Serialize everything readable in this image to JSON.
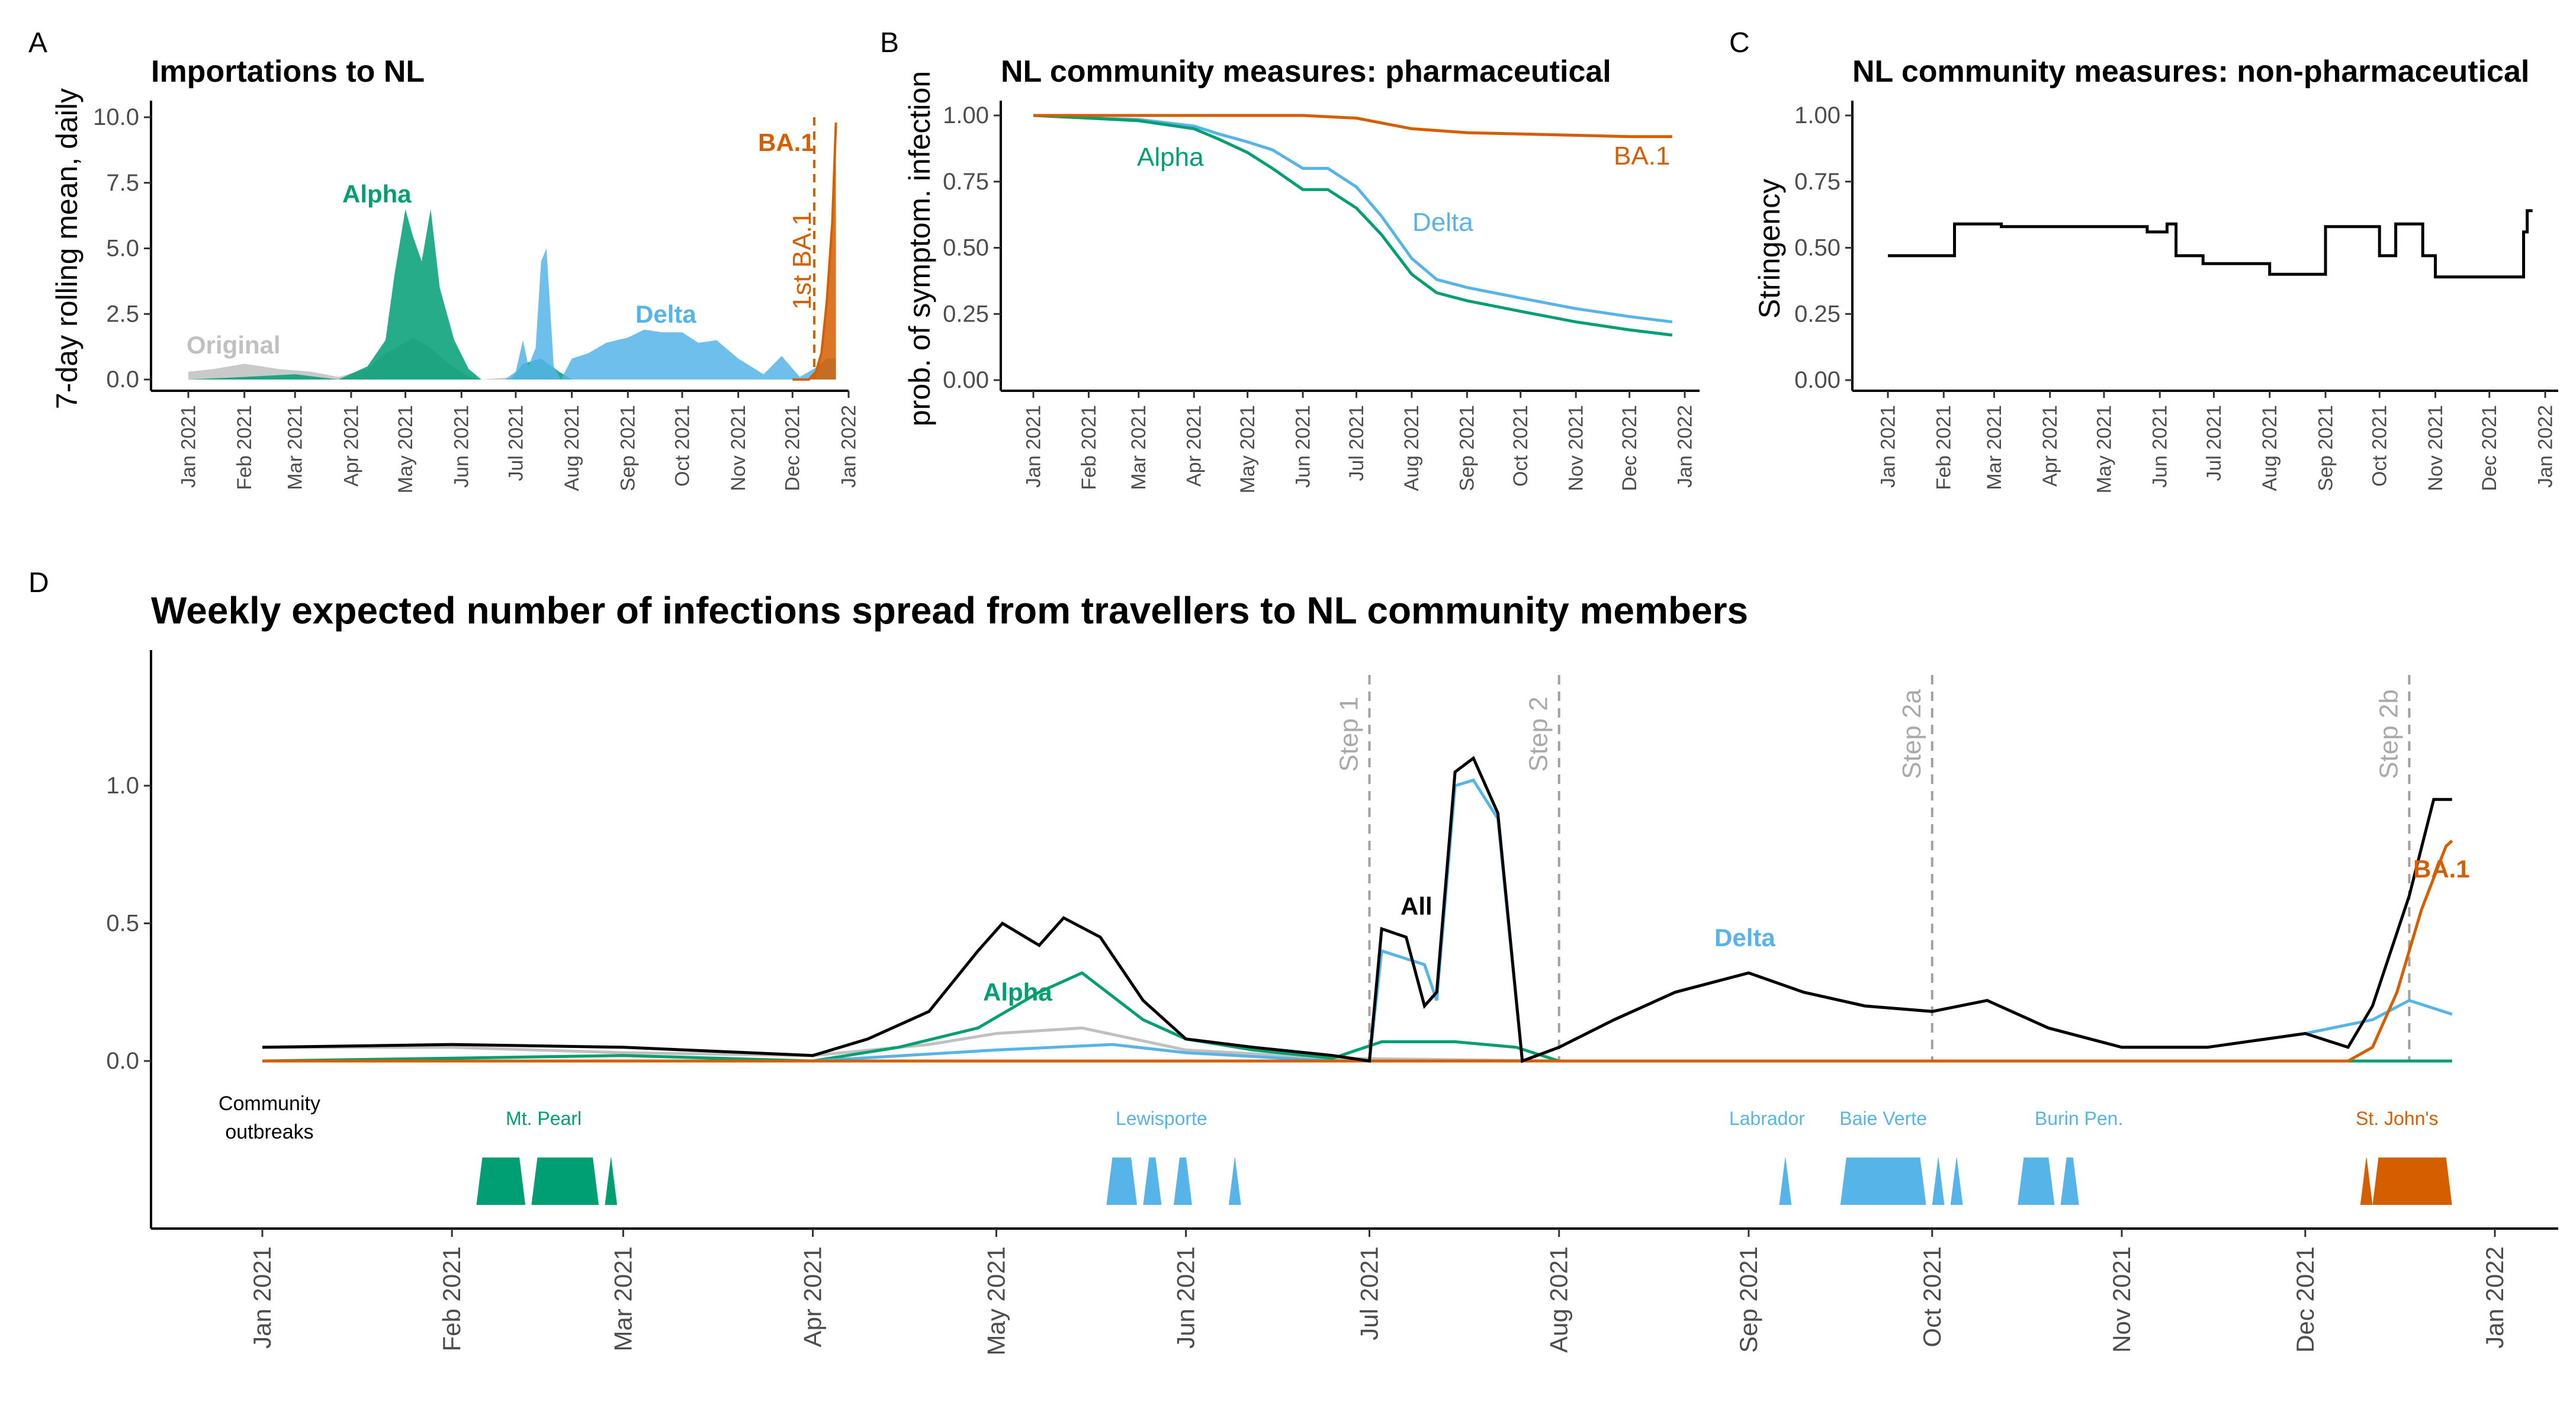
{
  "colors": {
    "Original": "#c0c0c0",
    "Alpha": "#009e73",
    "Delta": "#56b4e9",
    "BA.1": "#d55e00",
    "All": "#000000",
    "step": "#a0a0a0"
  },
  "month_labels": [
    "Jan 2021",
    "Feb 2021",
    "Mar 2021",
    "Apr 2021",
    "May 2021",
    "Jun 2021",
    "Jul 2021",
    "Aug 2021",
    "Sep 2021",
    "Oct 2021",
    "Nov 2021",
    "Dec 2021",
    "Jan 2022"
  ],
  "chart_data": [
    {
      "panel": "A",
      "type": "area",
      "title": "Importations to NL",
      "xlabel": "",
      "ylabel": "7-day rolling mean, daily",
      "ylim": [
        0,
        10
      ],
      "yticks": [
        "0.0",
        "2.5",
        "5.0",
        "7.5",
        "10.0"
      ],
      "annotations": {
        "Original": "Original",
        "Alpha": "Alpha",
        "Delta": "Delta",
        "BA.1": "BA.1",
        "first_ba1": "1st BA.1"
      },
      "first_ba1_date": "2021-12-13",
      "series": [
        {
          "name": "Original",
          "x": [
            "2021-01-01",
            "2021-01-15",
            "2021-02-01",
            "2021-02-20",
            "2021-03-10",
            "2021-03-25",
            "2021-04-10",
            "2021-04-20",
            "2021-04-28",
            "2021-05-05",
            "2021-05-15",
            "2021-05-25",
            "2021-06-05",
            "2021-06-12",
            "2021-07-01",
            "2021-07-10",
            "2021-07-20",
            "2021-08-01",
            "2021-12-25"
          ],
          "values": [
            0.3,
            0.4,
            0.6,
            0.4,
            0.3,
            0.1,
            0.4,
            1.0,
            1.3,
            1.6,
            1.2,
            0.6,
            0.1,
            0,
            0.1,
            0.2,
            0.1,
            0,
            0
          ]
        },
        {
          "name": "Alpha",
          "x": [
            "2021-01-01",
            "2021-02-01",
            "2021-03-01",
            "2021-03-25",
            "2021-04-10",
            "2021-04-20",
            "2021-04-25",
            "2021-05-01",
            "2021-05-05",
            "2021-05-10",
            "2021-05-15",
            "2021-05-20",
            "2021-05-28",
            "2021-06-05",
            "2021-06-12",
            "2021-06-28",
            "2021-07-05",
            "2021-07-15",
            "2021-07-25",
            "2021-08-01",
            "2021-12-25"
          ],
          "values": [
            0,
            0.1,
            0.2,
            0,
            0.5,
            1.5,
            4.0,
            6.5,
            5.5,
            4.5,
            6.5,
            3.5,
            1.5,
            0.4,
            0,
            0,
            0.6,
            0.8,
            0.3,
            0,
            0
          ]
        },
        {
          "name": "Delta",
          "x": [
            "2021-01-01",
            "2021-06-01",
            "2021-06-25",
            "2021-07-01",
            "2021-07-05",
            "2021-07-08",
            "2021-07-12",
            "2021-07-15",
            "2021-07-18",
            "2021-07-22",
            "2021-07-26",
            "2021-08-01",
            "2021-08-10",
            "2021-08-20",
            "2021-09-01",
            "2021-09-10",
            "2021-09-20",
            "2021-10-01",
            "2021-10-10",
            "2021-10-20",
            "2021-11-01",
            "2021-11-15",
            "2021-11-25",
            "2021-12-05",
            "2021-12-15",
            "2021-12-20",
            "2021-12-25"
          ],
          "values": [
            0,
            0,
            0,
            0.3,
            1.5,
            0.5,
            1.2,
            4.5,
            5.0,
            0.5,
            0,
            0.8,
            1.0,
            1.4,
            1.6,
            1.9,
            1.8,
            1.8,
            1.4,
            1.5,
            0.8,
            0.2,
            0.9,
            0.1,
            0.5,
            0.8,
            0.8
          ]
        },
        {
          "name": "BA.1",
          "x": [
            "2021-12-01",
            "2021-12-10",
            "2021-12-14",
            "2021-12-17",
            "2021-12-20",
            "2021-12-23",
            "2021-12-25"
          ],
          "values": [
            0,
            0,
            0.3,
            1.0,
            3.0,
            6.0,
            9.8
          ]
        }
      ]
    },
    {
      "panel": "B",
      "type": "line",
      "title": "NL community measures: pharmaceutical",
      "xlabel": "",
      "ylabel": "prob. of symptom. infection",
      "ylim": [
        0,
        1
      ],
      "yticks": [
        "0.00",
        "0.25",
        "0.50",
        "0.75",
        "1.00"
      ],
      "series": [
        {
          "name": "Alpha",
          "x": [
            "2021-01-01",
            "2021-02-01",
            "2021-03-01",
            "2021-04-01",
            "2021-04-15",
            "2021-05-01",
            "2021-05-15",
            "2021-06-01",
            "2021-06-15",
            "2021-07-01",
            "2021-07-15",
            "2021-08-01",
            "2021-08-15",
            "2021-09-01",
            "2021-10-01",
            "2021-11-01",
            "2021-12-01",
            "2021-12-25"
          ],
          "values": [
            1.0,
            0.99,
            0.98,
            0.95,
            0.91,
            0.86,
            0.8,
            0.72,
            0.72,
            0.65,
            0.55,
            0.4,
            0.33,
            0.3,
            0.26,
            0.22,
            0.19,
            0.17
          ]
        },
        {
          "name": "Delta",
          "x": [
            "2021-01-01",
            "2021-02-01",
            "2021-03-01",
            "2021-04-01",
            "2021-04-15",
            "2021-05-01",
            "2021-05-15",
            "2021-06-01",
            "2021-06-15",
            "2021-07-01",
            "2021-07-15",
            "2021-08-01",
            "2021-08-15",
            "2021-09-01",
            "2021-10-01",
            "2021-11-01",
            "2021-12-01",
            "2021-12-25"
          ],
          "values": [
            1.0,
            0.99,
            0.985,
            0.96,
            0.93,
            0.9,
            0.87,
            0.8,
            0.8,
            0.73,
            0.62,
            0.46,
            0.38,
            0.35,
            0.31,
            0.27,
            0.24,
            0.22
          ]
        },
        {
          "name": "BA.1",
          "x": [
            "2021-01-01",
            "2021-06-01",
            "2021-07-01",
            "2021-08-01",
            "2021-09-01",
            "2021-10-01",
            "2021-11-01",
            "2021-12-01",
            "2021-12-25"
          ],
          "values": [
            1.0,
            1.0,
            0.99,
            0.95,
            0.935,
            0.93,
            0.925,
            0.92,
            0.92
          ]
        }
      ]
    },
    {
      "panel": "C",
      "type": "line",
      "title": "NL community measures: non-pharmaceutical",
      "xlabel": "",
      "ylabel": "Stringency",
      "ylim": [
        0,
        1
      ],
      "yticks": [
        "0.00",
        "0.25",
        "0.50",
        "0.75",
        "1.00"
      ],
      "series": [
        {
          "name": "",
          "step": true,
          "x": [
            "2021-01-01",
            "2021-02-07",
            "2021-03-05",
            "2021-05-25",
            "2021-06-05",
            "2021-06-10",
            "2021-06-25",
            "2021-08-01",
            "2021-09-01",
            "2021-10-01",
            "2021-10-10",
            "2021-10-25",
            "2021-11-01",
            "2021-12-01",
            "2021-12-20",
            "2021-12-22",
            "2021-12-25"
          ],
          "values": [
            0.47,
            0.59,
            0.58,
            0.56,
            0.59,
            0.47,
            0.44,
            0.4,
            0.58,
            0.47,
            0.59,
            0.47,
            0.39,
            0.39,
            0.56,
            0.64,
            0.64
          ]
        }
      ]
    },
    {
      "panel": "D",
      "type": "line",
      "title": "Weekly expected number of infections spread from travellers to NL community members",
      "xlabel": "",
      "ylabel": "",
      "ylim": [
        -0.6,
        1.4
      ],
      "yticks": [
        "0.0",
        "0.5",
        "1.0"
      ],
      "labels": {
        "All": "All",
        "Alpha": "Alpha",
        "Delta": "Delta",
        "BA.1": "BA.1"
      },
      "steps": [
        {
          "label": "Step 1",
          "date": "2021-07-01"
        },
        {
          "label": "Step 2",
          "date": "2021-08-01"
        },
        {
          "label": "Step 2a",
          "date": "2021-10-01"
        },
        {
          "label": "Step 2b",
          "date": "2021-12-18"
        }
      ],
      "community_outbreaks_label": "Community\noutbreaks",
      "outbreaks": [
        {
          "name": "Mt. Pearl",
          "variant": "Alpha",
          "label_date": "2021-02-16",
          "ranges": [
            [
              "2021-02-05",
              "2021-02-13"
            ],
            [
              "2021-02-14",
              "2021-02-25"
            ],
            [
              "2021-02-26",
              "2021-02-28"
            ]
          ]
        },
        {
          "name": "Lewisporte",
          "variant": "Delta",
          "label_date": "2021-05-28",
          "ranges": [
            [
              "2021-05-19",
              "2021-05-24"
            ],
            [
              "2021-05-25",
              "2021-05-28"
            ],
            [
              "2021-05-30",
              "2021-06-02"
            ],
            [
              "2021-06-08",
              "2021-06-10"
            ]
          ]
        },
        {
          "name": "Labrador",
          "variant": "Delta",
          "label_date": "2021-09-04",
          "ranges": [
            [
              "2021-09-06",
              "2021-09-08"
            ]
          ]
        },
        {
          "name": "Baie Verte",
          "variant": "Delta",
          "label_date": "2021-09-23",
          "ranges": [
            [
              "2021-09-16",
              "2021-09-30"
            ],
            [
              "2021-10-01",
              "2021-10-03"
            ],
            [
              "2021-10-04",
              "2021-10-06"
            ]
          ]
        },
        {
          "name": "Burin Pen.",
          "variant": "Delta",
          "label_date": "2021-10-25",
          "ranges": [
            [
              "2021-10-15",
              "2021-10-21"
            ],
            [
              "2021-10-22",
              "2021-10-25"
            ]
          ]
        },
        {
          "name": "St. John's",
          "variant": "BA.1",
          "label_date": "2021-12-16",
          "ranges": [
            [
              "2021-12-10",
              "2021-12-12"
            ],
            [
              "2021-12-12",
              "2021-12-25"
            ]
          ]
        }
      ],
      "series": [
        {
          "name": "All",
          "x": [
            "2021-01-01",
            "2021-02-01",
            "2021-03-01",
            "2021-04-01",
            "2021-04-10",
            "2021-04-20",
            "2021-04-28",
            "2021-05-02",
            "2021-05-08",
            "2021-05-12",
            "2021-05-18",
            "2021-05-25",
            "2021-06-01",
            "2021-06-12",
            "2021-06-25",
            "2021-07-01",
            "2021-07-03",
            "2021-07-07",
            "2021-07-10",
            "2021-07-12",
            "2021-07-15",
            "2021-07-18",
            "2021-07-22",
            "2021-07-26",
            "2021-08-01",
            "2021-08-10",
            "2021-08-20",
            "2021-09-01",
            "2021-09-10",
            "2021-09-20",
            "2021-10-01",
            "2021-10-10",
            "2021-10-20",
            "2021-11-01",
            "2021-11-15",
            "2021-12-01",
            "2021-12-08",
            "2021-12-12",
            "2021-12-18",
            "2021-12-22",
            "2021-12-25"
          ],
          "values": [
            0.05,
            0.06,
            0.05,
            0.02,
            0.08,
            0.18,
            0.4,
            0.5,
            0.42,
            0.52,
            0.45,
            0.22,
            0.08,
            0.05,
            0.02,
            0.0,
            0.48,
            0.45,
            0.2,
            0.25,
            1.05,
            1.1,
            0.9,
            0.0,
            0.05,
            0.15,
            0.25,
            0.32,
            0.25,
            0.2,
            0.18,
            0.22,
            0.12,
            0.05,
            0.05,
            0.1,
            0.05,
            0.2,
            0.6,
            0.95,
            0.95
          ]
        },
        {
          "name": "Alpha",
          "x": [
            "2021-01-01",
            "2021-02-01",
            "2021-03-01",
            "2021-04-01",
            "2021-04-15",
            "2021-04-28",
            "2021-05-08",
            "2021-05-15",
            "2021-05-25",
            "2021-06-01",
            "2021-06-12",
            "2021-06-25",
            "2021-07-03",
            "2021-07-15",
            "2021-07-25",
            "2021-08-01",
            "2021-12-25"
          ],
          "values": [
            0.0,
            0.01,
            0.02,
            0.0,
            0.05,
            0.12,
            0.25,
            0.32,
            0.15,
            0.08,
            0.04,
            0.01,
            0.07,
            0.07,
            0.05,
            0.0,
            0.0
          ]
        },
        {
          "name": "Delta",
          "x": [
            "2021-01-01",
            "2021-04-01",
            "2021-05-01",
            "2021-05-20",
            "2021-06-01",
            "2021-06-25",
            "2021-07-01",
            "2021-07-03",
            "2021-07-10",
            "2021-07-12",
            "2021-07-15",
            "2021-07-18",
            "2021-07-22",
            "2021-07-26",
            "2021-08-01",
            "2021-08-10",
            "2021-08-20",
            "2021-09-01",
            "2021-09-10",
            "2021-09-20",
            "2021-10-01",
            "2021-10-10",
            "2021-10-20",
            "2021-11-01",
            "2021-11-15",
            "2021-12-01",
            "2021-12-12",
            "2021-12-18",
            "2021-12-25"
          ],
          "values": [
            0.0,
            0.0,
            0.04,
            0.06,
            0.03,
            0.0,
            0.0,
            0.4,
            0.35,
            0.22,
            1.0,
            1.02,
            0.88,
            0.0,
            0.05,
            0.15,
            0.25,
            0.32,
            0.25,
            0.2,
            0.18,
            0.22,
            0.12,
            0.05,
            0.05,
            0.1,
            0.15,
            0.22,
            0.17
          ]
        },
        {
          "name": "Original",
          "x": [
            "2021-01-01",
            "2021-02-01",
            "2021-03-01",
            "2021-04-01",
            "2021-04-20",
            "2021-05-01",
            "2021-05-15",
            "2021-06-01",
            "2021-06-25",
            "2021-08-01",
            "2021-12-25"
          ],
          "values": [
            0.05,
            0.05,
            0.03,
            0.02,
            0.06,
            0.1,
            0.12,
            0.04,
            0.01,
            0.0,
            0.0
          ]
        },
        {
          "name": "BA.1",
          "x": [
            "2021-01-01",
            "2021-12-08",
            "2021-12-12",
            "2021-12-16",
            "2021-12-20",
            "2021-12-24",
            "2021-12-25"
          ],
          "values": [
            0.0,
            0.0,
            0.05,
            0.25,
            0.55,
            0.78,
            0.8
          ]
        }
      ]
    }
  ]
}
